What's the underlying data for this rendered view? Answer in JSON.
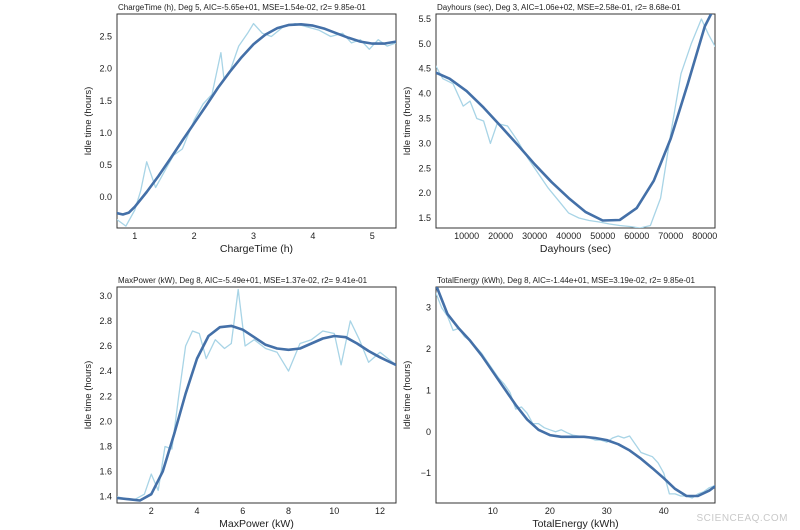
{
  "colors": {
    "fit": "#4470a8",
    "raw": "#a8d4e6",
    "axis": "#333333",
    "text": "#222222"
  },
  "watermark": "SCIENCEAQ.COM",
  "chart_data": [
    {
      "type": "line",
      "title": "ChargeTime (h), Deg 5, AIC=-5.65e+01, MSE=1.54e-02, r2= 9.85e-01",
      "xlabel": "ChargeTime (h)",
      "ylabel": "Idle time (hours)",
      "xlim": [
        0.7,
        5.4
      ],
      "ylim": [
        -0.48,
        2.85
      ],
      "xticks": [
        1,
        2,
        3,
        4,
        5
      ],
      "xtick_labels": [
        "1",
        "2",
        "3",
        "4",
        "5"
      ],
      "yticks": [
        0,
        0.5,
        1,
        1.5,
        2,
        2.5
      ],
      "ytick_labels": [
        "0.0",
        "0.5",
        "1.0",
        "1.5",
        "2.0",
        "2.5"
      ],
      "series": [
        {
          "role": "raw",
          "x": [
            0.7,
            0.85,
            1.0,
            1.1,
            1.2,
            1.35,
            1.5,
            1.65,
            1.8,
            2.0,
            2.15,
            2.3,
            2.45,
            2.5,
            2.6,
            2.75,
            2.9,
            3.0,
            3.15,
            3.3,
            3.5,
            3.7,
            3.9,
            4.1,
            4.3,
            4.5,
            4.65,
            4.8,
            4.95,
            5.1,
            5.25,
            5.4
          ],
          "y": [
            -0.35,
            -0.45,
            -0.2,
            0.1,
            0.55,
            0.15,
            0.4,
            0.65,
            0.75,
            1.2,
            1.45,
            1.6,
            2.25,
            1.85,
            1.95,
            2.35,
            2.55,
            2.7,
            2.55,
            2.5,
            2.65,
            2.7,
            2.65,
            2.6,
            2.5,
            2.55,
            2.4,
            2.45,
            2.3,
            2.45,
            2.35,
            2.4
          ]
        },
        {
          "role": "fit",
          "x": [
            0.7,
            0.8,
            0.9,
            1.0,
            1.2,
            1.4,
            1.6,
            1.8,
            2.0,
            2.2,
            2.4,
            2.6,
            2.8,
            3.0,
            3.2,
            3.4,
            3.6,
            3.8,
            4.0,
            4.2,
            4.4,
            4.6,
            4.8,
            5.0,
            5.2,
            5.4
          ],
          "y": [
            -0.25,
            -0.27,
            -0.24,
            -0.15,
            0.08,
            0.33,
            0.6,
            0.88,
            1.15,
            1.42,
            1.7,
            1.95,
            2.18,
            2.38,
            2.53,
            2.63,
            2.68,
            2.69,
            2.67,
            2.62,
            2.55,
            2.48,
            2.42,
            2.39,
            2.39,
            2.42
          ]
        }
      ]
    },
    {
      "type": "line",
      "title": "Dayhours (sec), Deg 3, AIC=1.06e+02, MSE=2.58e-01, r2= 8.68e-01",
      "xlabel": "Dayhours (sec)",
      "ylabel": "Idle time (hours)",
      "xlim": [
        1000,
        83000
      ],
      "ylim": [
        1.3,
        5.6
      ],
      "xticks": [
        10000,
        20000,
        30000,
        40000,
        50000,
        60000,
        70000,
        80000
      ],
      "xtick_labels": [
        "10000",
        "20000",
        "30000",
        "40000",
        "50000",
        "60000",
        "70000",
        "80000"
      ],
      "yticks": [
        1.5,
        2.0,
        2.5,
        3.0,
        3.5,
        4.0,
        4.5,
        5.0,
        5.5
      ],
      "ytick_labels": [
        "1.5",
        "2.0",
        "2.5",
        "3.0",
        "3.5",
        "4.0",
        "4.5",
        "5.0",
        "5.5"
      ],
      "series": [
        {
          "role": "raw",
          "x": [
            1000,
            3000,
            6000,
            9000,
            11000,
            13000,
            15000,
            17000,
            19000,
            22000,
            25000,
            28000,
            31000,
            34000,
            37000,
            40000,
            43000,
            46000,
            49000,
            52000,
            55000,
            58000,
            61000,
            64000,
            67000,
            70000,
            73000,
            76000,
            79000,
            81000,
            83000
          ],
          "y": [
            4.55,
            4.3,
            4.2,
            3.75,
            3.85,
            3.5,
            3.45,
            3.0,
            3.4,
            3.35,
            3.05,
            2.7,
            2.4,
            2.1,
            1.85,
            1.6,
            1.5,
            1.45,
            1.42,
            1.38,
            1.35,
            1.33,
            1.3,
            1.35,
            1.9,
            3.2,
            4.4,
            5.0,
            5.5,
            5.2,
            4.95
          ]
        },
        {
          "role": "fit",
          "x": [
            1000,
            5000,
            10000,
            15000,
            20000,
            25000,
            30000,
            35000,
            40000,
            45000,
            50000,
            55000,
            60000,
            65000,
            70000,
            75000,
            80000,
            82000
          ],
          "y": [
            4.42,
            4.3,
            4.05,
            3.72,
            3.35,
            2.97,
            2.58,
            2.22,
            1.9,
            1.62,
            1.45,
            1.46,
            1.7,
            2.25,
            3.1,
            4.2,
            5.35,
            5.62
          ]
        }
      ]
    },
    {
      "type": "line",
      "title": "MaxPower (kW), Deg 8, AIC=-5.49e+01, MSE=1.37e-02,  r2= 9.41e-01",
      "xlabel": "MaxPower (kW)",
      "ylabel": "Idle time (hours)",
      "xlim": [
        0.5,
        12.7
      ],
      "ylim": [
        1.35,
        3.07
      ],
      "xticks": [
        2,
        4,
        6,
        8,
        10,
        12
      ],
      "xtick_labels": [
        "2",
        "4",
        "6",
        "8",
        "10",
        "12"
      ],
      "yticks": [
        1.4,
        1.6,
        1.8,
        2.0,
        2.2,
        2.4,
        2.6,
        2.8,
        3.0
      ],
      "ytick_labels": [
        "1.4",
        "1.6",
        "1.8",
        "2.0",
        "2.2",
        "2.4",
        "2.6",
        "2.8",
        "3.0"
      ],
      "series": [
        {
          "role": "raw",
          "x": [
            0.5,
            1.0,
            1.3,
            1.7,
            2.0,
            2.3,
            2.6,
            2.9,
            3.2,
            3.5,
            3.8,
            4.1,
            4.4,
            4.8,
            5.2,
            5.5,
            5.8,
            6.1,
            6.5,
            7.0,
            7.5,
            8.0,
            8.5,
            9.0,
            9.5,
            10.0,
            10.3,
            10.7,
            11.1,
            11.5,
            12.0,
            12.7
          ],
          "y": [
            1.4,
            1.38,
            1.38,
            1.42,
            1.58,
            1.45,
            1.8,
            1.78,
            2.2,
            2.6,
            2.72,
            2.7,
            2.5,
            2.65,
            2.58,
            2.62,
            3.05,
            2.6,
            2.65,
            2.58,
            2.55,
            2.4,
            2.62,
            2.65,
            2.72,
            2.7,
            2.45,
            2.8,
            2.65,
            2.47,
            2.55,
            2.45
          ]
        },
        {
          "role": "fit",
          "x": [
            0.5,
            1.0,
            1.5,
            2.0,
            2.5,
            3.0,
            3.5,
            4.0,
            4.5,
            5.0,
            5.5,
            6.0,
            6.5,
            7.0,
            7.5,
            8.0,
            8.5,
            9.0,
            9.5,
            10.0,
            10.5,
            11.0,
            11.5,
            12.0,
            12.7
          ],
          "y": [
            1.39,
            1.38,
            1.37,
            1.42,
            1.6,
            1.9,
            2.22,
            2.5,
            2.68,
            2.75,
            2.76,
            2.73,
            2.67,
            2.61,
            2.58,
            2.57,
            2.58,
            2.62,
            2.66,
            2.68,
            2.67,
            2.62,
            2.56,
            2.51,
            2.45
          ]
        }
      ]
    },
    {
      "type": "line",
      "title": "TotalEnergy (kWh), Deg 8, AIC=-1.44e+01, MSE=3.19e-02,  r2= 9.85e-01",
      "xlabel": "TotalEnergy (kWh)",
      "ylabel": "Idle time (hours)",
      "xlim": [
        0,
        49
      ],
      "ylim": [
        -1.72,
        3.5
      ],
      "xticks": [
        10,
        20,
        30,
        40
      ],
      "xtick_labels": [
        "10",
        "20",
        "30",
        "40"
      ],
      "yticks": [
        -1,
        0,
        1,
        2,
        3
      ],
      "ytick_labels": [
        "−1",
        "0",
        "1",
        "2",
        "3"
      ],
      "series": [
        {
          "role": "raw",
          "x": [
            0,
            1,
            2,
            3,
            4,
            5,
            6,
            7,
            8,
            9,
            10,
            11,
            12,
            13,
            14,
            15,
            16,
            17,
            18,
            19,
            20,
            21,
            22,
            23,
            24,
            25,
            26,
            27,
            28,
            29,
            30,
            31,
            32,
            33,
            34,
            35,
            36,
            37,
            38,
            39,
            40,
            41,
            42,
            43,
            44,
            45,
            46,
            47,
            48,
            49
          ],
          "y": [
            3.35,
            3.0,
            2.8,
            2.45,
            2.5,
            2.3,
            2.2,
            2.05,
            1.9,
            1.7,
            1.5,
            1.3,
            1.15,
            0.95,
            0.55,
            0.6,
            0.45,
            0.2,
            0.2,
            0.1,
            0.05,
            0.0,
            0.05,
            -0.02,
            -0.08,
            -0.1,
            -0.12,
            -0.15,
            -0.2,
            -0.2,
            -0.25,
            -0.15,
            -0.1,
            -0.15,
            -0.1,
            -0.3,
            -0.5,
            -0.55,
            -0.6,
            -0.75,
            -1.0,
            -1.5,
            -1.5,
            -1.55,
            -1.55,
            -1.6,
            -1.5,
            -1.45,
            -1.35,
            -1.3
          ]
        },
        {
          "role": "fit",
          "x": [
            0,
            2,
            4,
            6,
            8,
            10,
            12,
            14,
            16,
            18,
            20,
            22,
            24,
            26,
            28,
            30,
            32,
            34,
            36,
            38,
            40,
            42,
            44,
            46,
            48,
            49
          ],
          "y": [
            3.55,
            2.85,
            2.5,
            2.2,
            1.85,
            1.45,
            1.05,
            0.65,
            0.3,
            0.05,
            -0.08,
            -0.12,
            -0.12,
            -0.12,
            -0.15,
            -0.2,
            -0.3,
            -0.45,
            -0.65,
            -0.88,
            -1.12,
            -1.38,
            -1.55,
            -1.55,
            -1.42,
            -1.32
          ]
        }
      ]
    }
  ]
}
